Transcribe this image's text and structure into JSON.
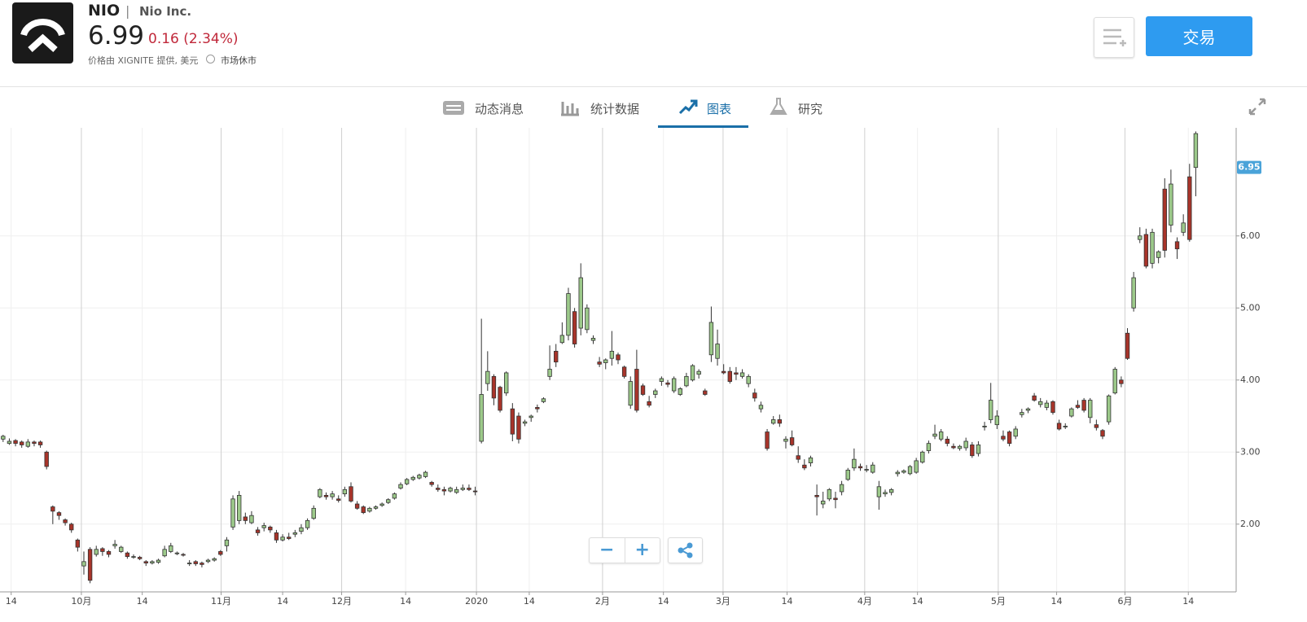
{
  "header": {
    "symbol": "NIO",
    "separator": "|",
    "company": "Nio Inc.",
    "price": "6.99",
    "change": "0.16 (2.34%)",
    "source": "价格由 XIGNITE 提供, 美元",
    "status": "市场休市",
    "trade_button": "交易"
  },
  "tabs": [
    "动态消息",
    "统计数据",
    "图表",
    "研究"
  ],
  "zoom": [
    "−",
    "+"
  ],
  "chart_data": {
    "type": "candlestick",
    "up_color": "#9cc98a",
    "down_color": "#a8342a",
    "grid": true,
    "xlim": [
      -0.5,
      198.5
    ],
    "ylim": [
      1.06,
      7.5
    ],
    "yticks": [
      {
        "value": 2,
        "label": "2.00"
      },
      {
        "value": 3,
        "label": "3.00"
      },
      {
        "value": 4,
        "label": "4.00"
      },
      {
        "value": 5,
        "label": "5.00"
      },
      {
        "value": 6,
        "label": "6.00"
      }
    ],
    "xticks": [
      {
        "value": 1.3,
        "label": "14"
      },
      {
        "value": 12.6,
        "label": "10月"
      },
      {
        "value": 22.4,
        "label": "14"
      },
      {
        "value": 35.1,
        "label": "11月"
      },
      {
        "value": 45.0,
        "label": "14"
      },
      {
        "value": 54.5,
        "label": "12月"
      },
      {
        "value": 64.8,
        "label": "14"
      },
      {
        "value": 76.2,
        "label": "2020"
      },
      {
        "value": 84.7,
        "label": "14"
      },
      {
        "value": 96.5,
        "label": "2月"
      },
      {
        "value": 106.3,
        "label": "14"
      },
      {
        "value": 115.9,
        "label": "3月"
      },
      {
        "value": 126.2,
        "label": "14"
      },
      {
        "value": 138.7,
        "label": "4月"
      },
      {
        "value": 147.2,
        "label": "14"
      },
      {
        "value": 160.2,
        "label": "5月"
      },
      {
        "value": 169.6,
        "label": "14"
      },
      {
        "value": 180.6,
        "label": "6月"
      },
      {
        "value": 190.8,
        "label": "14"
      }
    ],
    "last_price": {
      "value": 6.95,
      "label": "6.95"
    },
    "open": [
      3.18,
      3.12,
      3.16,
      3.14,
      3.08,
      3.14,
      3.14,
      3.0,
      2.24,
      2.16,
      2.06,
      2.0,
      1.78,
      1.42,
      1.65,
      1.58,
      1.66,
      1.62,
      1.7,
      1.62,
      1.6,
      1.54,
      1.54,
      1.48,
      1.46,
      1.47,
      1.56,
      1.62,
      1.6,
      1.58,
      1.46,
      1.48,
      1.46,
      1.48,
      1.5,
      1.62,
      1.7,
      1.96,
      2.05,
      2.1,
      2.02,
      1.92,
      1.95,
      1.96,
      1.88,
      1.78,
      1.82,
      1.86,
      1.9,
      1.95,
      2.08,
      2.38,
      2.4,
      2.38,
      2.35,
      2.42,
      2.52,
      2.28,
      2.24,
      2.18,
      2.22,
      2.26,
      2.3,
      2.36,
      2.5,
      2.56,
      2.62,
      2.64,
      2.66,
      2.58,
      2.5,
      2.48,
      2.46,
      2.44,
      2.48,
      2.5,
      2.46,
      3.15,
      3.95,
      4.05,
      3.9,
      3.82,
      3.6,
      3.5,
      3.4,
      3.48,
      3.62,
      3.7,
      4.05,
      4.4,
      4.52,
      4.62,
      4.95,
      4.72,
      4.7,
      4.55,
      4.25,
      4.24,
      4.3,
      4.35,
      4.18,
      3.65,
      4.15,
      3.92,
      3.7,
      3.8,
      3.98,
      3.96,
      3.85,
      3.8,
      3.92,
      4.0,
      4.08,
      3.85,
      4.35,
      4.3,
      4.12,
      4.12,
      4.1,
      4.05,
      3.95,
      3.82,
      3.6,
      3.28,
      3.4,
      3.45,
      3.15,
      3.2,
      2.95,
      2.82,
      2.85,
      2.4,
      2.28,
      2.35,
      2.36,
      2.45,
      2.62,
      2.78,
      2.8,
      2.76,
      2.72,
      2.38,
      2.42,
      2.44,
      2.7,
      2.72,
      2.7,
      2.72,
      2.86,
      3.02,
      3.22,
      3.18,
      3.18,
      3.08,
      3.05,
      3.06,
      3.1,
      2.98,
      3.35,
      3.45,
      3.38,
      3.22,
      3.28,
      3.22,
      3.52,
      3.58,
      3.78,
      3.66,
      3.62,
      3.7,
      3.4,
      3.35,
      3.5,
      3.65,
      3.72,
      3.48,
      3.38,
      3.3,
      3.42,
      3.82,
      4.0,
      4.65,
      5.0,
      5.95,
      6.02,
      5.62,
      5.7,
      6.65,
      6.15,
      5.92,
      6.05,
      6.82,
      6.95
    ],
    "high": [
      3.24,
      3.19,
      3.18,
      3.16,
      3.18,
      3.16,
      3.16,
      3.02,
      2.26,
      2.18,
      2.08,
      2.02,
      1.8,
      1.62,
      1.68,
      1.7,
      1.68,
      1.64,
      1.78,
      1.7,
      1.62,
      1.58,
      1.56,
      1.5,
      1.5,
      1.52,
      1.7,
      1.74,
      1.62,
      1.6,
      1.5,
      1.5,
      1.48,
      1.52,
      1.54,
      1.64,
      1.82,
      2.4,
      2.46,
      2.16,
      2.18,
      1.96,
      2.02,
      1.98,
      1.92,
      1.86,
      1.88,
      1.92,
      2.0,
      2.08,
      2.26,
      2.5,
      2.44,
      2.46,
      2.4,
      2.52,
      2.58,
      2.32,
      2.26,
      2.24,
      2.26,
      2.3,
      2.36,
      2.44,
      2.58,
      2.64,
      2.67,
      2.7,
      2.74,
      2.6,
      2.55,
      2.52,
      2.52,
      2.52,
      2.55,
      2.55,
      2.52,
      4.85,
      4.4,
      4.08,
      3.92,
      4.12,
      3.68,
      3.55,
      3.45,
      3.52,
      3.66,
      3.76,
      4.48,
      4.5,
      4.8,
      5.28,
      5.0,
      5.62,
      5.05,
      4.62,
      4.32,
      4.3,
      4.68,
      4.38,
      4.2,
      4.05,
      4.42,
      3.95,
      3.78,
      3.88,
      4.05,
      4.0,
      4.05,
      3.9,
      4.1,
      4.22,
      4.15,
      3.88,
      5.02,
      4.7,
      4.22,
      4.18,
      4.18,
      4.15,
      4.08,
      3.88,
      3.7,
      3.32,
      3.5,
      3.52,
      3.22,
      3.3,
      3.08,
      2.9,
      2.95,
      2.55,
      2.45,
      2.5,
      2.45,
      2.6,
      2.78,
      3.05,
      2.84,
      2.82,
      2.86,
      2.6,
      2.48,
      2.5,
      2.75,
      2.76,
      2.82,
      2.92,
      3.02,
      3.16,
      3.38,
      3.32,
      3.22,
      3.12,
      3.1,
      3.2,
      3.14,
      3.15,
      3.42,
      3.96,
      3.58,
      3.3,
      3.3,
      3.36,
      3.6,
      3.62,
      3.82,
      3.75,
      3.72,
      3.72,
      3.45,
      3.4,
      3.62,
      3.72,
      3.75,
      3.75,
      3.45,
      3.32,
      3.8,
      4.18,
      4.05,
      4.72,
      5.5,
      6.12,
      6.1,
      6.1,
      5.8,
      6.8,
      6.92,
      5.98,
      6.3,
      7.0,
      7.45
    ],
    "low": [
      3.14,
      3.1,
      3.08,
      3.06,
      3.06,
      3.08,
      3.06,
      2.76,
      2.0,
      2.06,
      1.98,
      1.88,
      1.62,
      1.3,
      1.18,
      1.55,
      1.56,
      1.54,
      1.66,
      1.6,
      1.52,
      1.52,
      1.5,
      1.42,
      1.44,
      1.45,
      1.54,
      1.6,
      1.57,
      1.55,
      1.42,
      1.42,
      1.4,
      1.46,
      1.48,
      1.56,
      1.62,
      1.92,
      2.0,
      2.0,
      2.0,
      1.84,
      1.9,
      1.88,
      1.74,
      1.76,
      1.78,
      1.82,
      1.86,
      1.92,
      2.06,
      2.36,
      2.34,
      2.34,
      2.3,
      2.38,
      2.3,
      2.2,
      2.14,
      2.16,
      2.2,
      2.24,
      2.28,
      2.34,
      2.48,
      2.54,
      2.6,
      2.62,
      2.64,
      2.52,
      2.45,
      2.4,
      2.44,
      2.42,
      2.46,
      2.46,
      2.4,
      3.12,
      3.85,
      3.65,
      3.55,
      3.78,
      3.15,
      3.12,
      3.36,
      3.42,
      3.55,
      3.68,
      4.0,
      4.18,
      4.5,
      4.55,
      4.45,
      4.62,
      4.65,
      4.5,
      4.18,
      4.15,
      4.2,
      4.22,
      4.02,
      3.6,
      3.55,
      3.78,
      3.62,
      3.75,
      3.92,
      3.9,
      3.82,
      3.78,
      3.9,
      3.98,
      4.02,
      3.78,
      4.25,
      4.2,
      4.08,
      3.95,
      4.0,
      4.02,
      3.9,
      3.7,
      3.55,
      3.02,
      3.38,
      3.35,
      3.05,
      3.08,
      2.85,
      2.75,
      2.8,
      2.12,
      2.22,
      2.32,
      2.22,
      2.4,
      2.6,
      2.74,
      2.74,
      2.72,
      2.7,
      2.2,
      2.38,
      2.4,
      2.66,
      2.7,
      2.68,
      2.7,
      2.84,
      2.98,
      3.18,
      3.15,
      3.08,
      3.04,
      3.02,
      3.02,
      2.92,
      2.94,
      3.3,
      3.4,
      3.32,
      3.15,
      3.08,
      3.18,
      3.48,
      3.54,
      3.7,
      3.62,
      3.58,
      3.52,
      3.3,
      3.32,
      3.48,
      3.6,
      3.55,
      3.4,
      3.3,
      3.18,
      3.38,
      3.8,
      3.9,
      4.28,
      4.95,
      5.9,
      5.55,
      5.55,
      5.62,
      5.7,
      6.05,
      5.68,
      6.0,
      5.92,
      6.55
    ],
    "close": [
      3.22,
      3.15,
      3.12,
      3.1,
      3.14,
      3.12,
      3.1,
      2.8,
      2.18,
      2.12,
      2.02,
      1.92,
      1.68,
      1.48,
      1.22,
      1.65,
      1.62,
      1.58,
      1.72,
      1.68,
      1.55,
      1.55,
      1.52,
      1.46,
      1.48,
      1.5,
      1.65,
      1.7,
      1.6,
      1.57,
      1.46,
      1.45,
      1.44,
      1.5,
      1.52,
      1.58,
      1.78,
      2.35,
      2.4,
      2.05,
      2.12,
      1.88,
      1.98,
      1.92,
      1.78,
      1.82,
      1.8,
      1.88,
      1.95,
      2.05,
      2.22,
      2.48,
      2.38,
      2.42,
      2.33,
      2.48,
      2.32,
      2.22,
      2.16,
      2.22,
      2.24,
      2.28,
      2.34,
      2.42,
      2.55,
      2.62,
      2.65,
      2.68,
      2.72,
      2.55,
      2.48,
      2.46,
      2.5,
      2.48,
      2.5,
      2.48,
      2.45,
      3.8,
      4.12,
      3.75,
      3.58,
      4.1,
      3.25,
      3.18,
      3.42,
      3.5,
      3.6,
      3.74,
      4.15,
      4.25,
      4.62,
      5.2,
      4.5,
      5.42,
      5.0,
      4.58,
      4.22,
      4.28,
      4.4,
      4.28,
      4.05,
      3.98,
      3.58,
      3.8,
      3.65,
      3.85,
      4.02,
      3.94,
      4.02,
      3.88,
      4.05,
      4.2,
      4.12,
      3.8,
      4.8,
      4.5,
      4.1,
      3.98,
      4.08,
      4.1,
      4.05,
      3.75,
      3.65,
      3.05,
      3.45,
      3.4,
      3.18,
      3.1,
      2.9,
      2.78,
      2.92,
      2.38,
      2.32,
      2.48,
      2.34,
      2.55,
      2.75,
      2.9,
      2.78,
      2.76,
      2.82,
      2.52,
      2.44,
      2.48,
      2.72,
      2.74,
      2.8,
      2.88,
      3.0,
      3.12,
      3.25,
      3.28,
      3.12,
      3.06,
      3.08,
      3.15,
      2.95,
      3.1,
      3.36,
      3.72,
      3.5,
      3.18,
      3.12,
      3.32,
      3.55,
      3.6,
      3.72,
      3.7,
      3.68,
      3.55,
      3.32,
      3.36,
      3.6,
      3.62,
      3.58,
      3.72,
      3.34,
      3.22,
      3.78,
      4.15,
      3.95,
      4.3,
      5.42,
      6.0,
      5.58,
      6.05,
      5.78,
      5.8,
      6.72,
      5.82,
      6.18,
      5.95,
      7.42
    ]
  }
}
